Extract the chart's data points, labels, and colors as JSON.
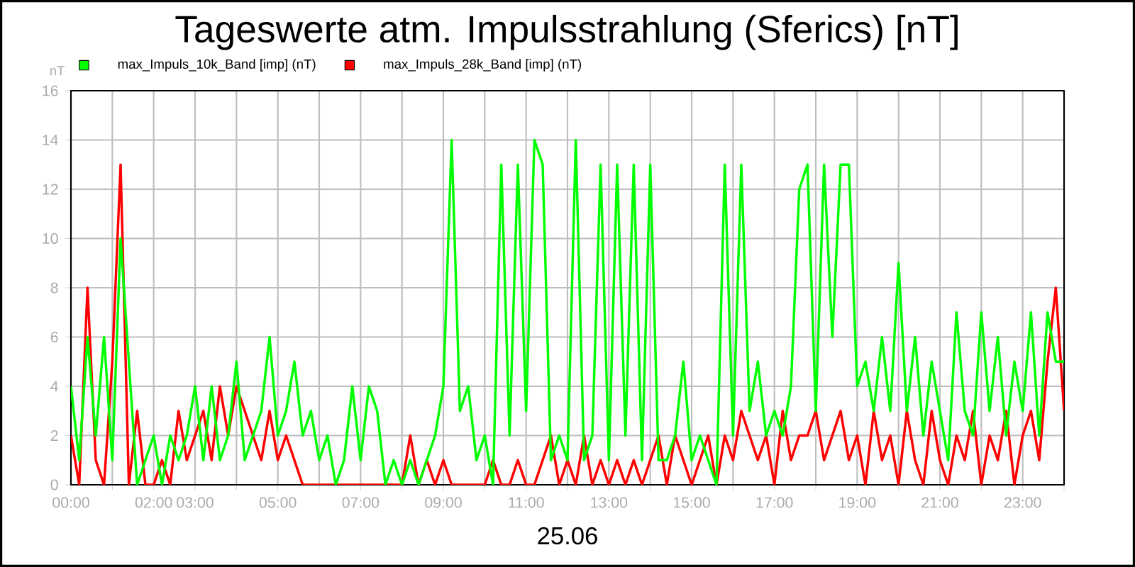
{
  "chart_data": {
    "type": "line",
    "title": "Tageswerte atm. Impulsstrahlung (Sferics) [nT]",
    "xlabel": "25.06",
    "ylabel": "nT",
    "x": [
      0,
      0.2,
      0.4,
      0.6,
      0.8,
      1,
      1.2,
      1.4,
      1.6,
      1.8,
      2,
      2.2,
      2.4,
      2.6,
      2.8,
      3,
      3.2,
      3.4,
      3.6,
      3.8,
      4,
      4.2,
      4.4,
      4.6,
      4.8,
      5,
      5.2,
      5.4,
      5.6,
      5.8,
      6,
      6.2,
      6.4,
      6.6,
      6.8,
      7,
      7.2,
      7.4,
      7.6,
      7.8,
      8,
      8.2,
      8.4,
      8.6,
      8.8,
      9,
      9.2,
      9.4,
      9.6,
      9.8,
      10,
      10.2,
      10.4,
      10.6,
      10.8,
      11,
      11.2,
      11.4,
      11.6,
      11.8,
      12,
      12.2,
      12.4,
      12.6,
      12.8,
      13,
      13.2,
      13.4,
      13.6,
      13.8,
      14,
      14.2,
      14.4,
      14.6,
      14.8,
      15,
      15.2,
      15.4,
      15.6,
      15.8,
      16,
      16.2,
      16.4,
      16.6,
      16.8,
      17,
      17.2,
      17.4,
      17.6,
      17.8,
      18,
      18.2,
      18.4,
      18.6,
      18.8,
      19,
      19.2,
      19.4,
      19.6,
      19.8,
      20,
      20.2,
      20.4,
      20.6,
      20.8,
      21,
      21.2,
      21.4,
      21.6,
      21.8,
      22,
      22.2,
      22.4,
      22.6,
      22.8,
      23,
      23.2,
      23.4,
      23.6,
      23.8,
      24
    ],
    "series": [
      {
        "name": "max_Impuls_10k_Band [imp] (nT)",
        "color": "#00ff00",
        "values": [
          4,
          1,
          6,
          2,
          6,
          1,
          10,
          5,
          0,
          1,
          2,
          0,
          2,
          1,
          2,
          4,
          1,
          4,
          1,
          2,
          5,
          1,
          2,
          3,
          6,
          2,
          3,
          5,
          2,
          3,
          1,
          2,
          0,
          1,
          4,
          1,
          4,
          3,
          0,
          1,
          0,
          1,
          0,
          1,
          2,
          4,
          14,
          3,
          4,
          1,
          2,
          0,
          13,
          2,
          13,
          3,
          14,
          13,
          1,
          2,
          1,
          14,
          1,
          2,
          13,
          1,
          13,
          2,
          13,
          1,
          13,
          1,
          1,
          2,
          5,
          1,
          2,
          1,
          0,
          13,
          2,
          13,
          3,
          5,
          2,
          3,
          2,
          4,
          12,
          13,
          3,
          13,
          6,
          13,
          13,
          4,
          5,
          3,
          6,
          3,
          9,
          3,
          6,
          2,
          5,
          3,
          1,
          7,
          3,
          2,
          7,
          3,
          6,
          2,
          5,
          3,
          7,
          2,
          7,
          5,
          5
        ]
      },
      {
        "name": "max_Impuls_28k_Band [imp] (nT)",
        "color": "#ff0000",
        "values": [
          2,
          0,
          8,
          1,
          0,
          5,
          13,
          0,
          3,
          0,
          0,
          1,
          0,
          3,
          1,
          2,
          3,
          1,
          4,
          2,
          4,
          null,
          2,
          1,
          3,
          1,
          2,
          1,
          0,
          0,
          0,
          0,
          0,
          0,
          0,
          0,
          0,
          0,
          0,
          0,
          0,
          2,
          0,
          1,
          0,
          1,
          0,
          0,
          0,
          0,
          0,
          1,
          0,
          0,
          1,
          0,
          0,
          1,
          2,
          0,
          1,
          0,
          2,
          0,
          1,
          0,
          1,
          0,
          1,
          0,
          1,
          2,
          0,
          2,
          1,
          0,
          1,
          2,
          0,
          2,
          1,
          3,
          2,
          1,
          2,
          0,
          3,
          1,
          2,
          2,
          3,
          1,
          2,
          3,
          1,
          2,
          0,
          3,
          1,
          2,
          0,
          3,
          1,
          0,
          3,
          1,
          0,
          2,
          1,
          3,
          0,
          2,
          1,
          3,
          0,
          2,
          3,
          1,
          5,
          8,
          3
        ]
      }
    ],
    "xlim": [
      0,
      24
    ],
    "xticks": [
      {
        "value": 0,
        "label": "00:00"
      },
      {
        "value": 1,
        "label": null
      },
      {
        "value": 2,
        "label": "02:00"
      },
      {
        "value": 3,
        "label": "03:00"
      },
      {
        "value": 4,
        "label": null
      },
      {
        "value": 5,
        "label": "05:00"
      },
      {
        "value": 6,
        "label": null
      },
      {
        "value": 7,
        "label": "07:00"
      },
      {
        "value": 8,
        "label": null
      },
      {
        "value": 9,
        "label": "09:00"
      },
      {
        "value": 10,
        "label": null
      },
      {
        "value": 11,
        "label": "11:00"
      },
      {
        "value": 12,
        "label": null
      },
      {
        "value": 13,
        "label": "13:00"
      },
      {
        "value": 14,
        "label": null
      },
      {
        "value": 15,
        "label": "15:00"
      },
      {
        "value": 16,
        "label": null
      },
      {
        "value": 17,
        "label": "17:00"
      },
      {
        "value": 18,
        "label": null
      },
      {
        "value": 19,
        "label": "19:00"
      },
      {
        "value": 20,
        "label": null
      },
      {
        "value": 21,
        "label": "21:00"
      },
      {
        "value": 22,
        "label": null
      },
      {
        "value": 23,
        "label": "23:00"
      },
      {
        "value": 24,
        "label": null
      }
    ],
    "ylim": [
      0,
      16
    ],
    "yticks": [
      0,
      2,
      4,
      6,
      8,
      10,
      12,
      14,
      16
    ],
    "grid": true,
    "legend": "top left"
  }
}
